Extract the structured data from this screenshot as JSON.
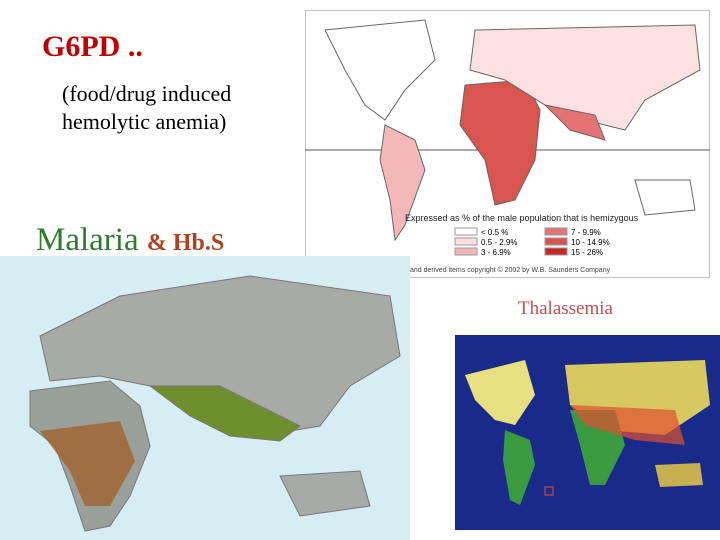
{
  "slide": {
    "g6pd": {
      "title": "G6PD ..",
      "subtitle_lines": [
        "(food/drug induced",
        "hemolytic anemia)"
      ]
    },
    "malaria": {
      "title": "Malaria",
      "suffix": "& Hb.S"
    },
    "thalassemia": {
      "title": "Thalassemia"
    },
    "g6pd_map": {
      "legend_title": "Expressed as % of the male population that is hemizygous",
      "legend_items": [
        "< 0.5 %",
        "0.5 - 2.9%",
        "3 - 6.9%",
        "7 - 9.9%",
        "10 - 14.9%",
        "15 - 26%"
      ],
      "copyright": "and derived items copyright © 2002 by W.B. Saunders Company"
    }
  }
}
